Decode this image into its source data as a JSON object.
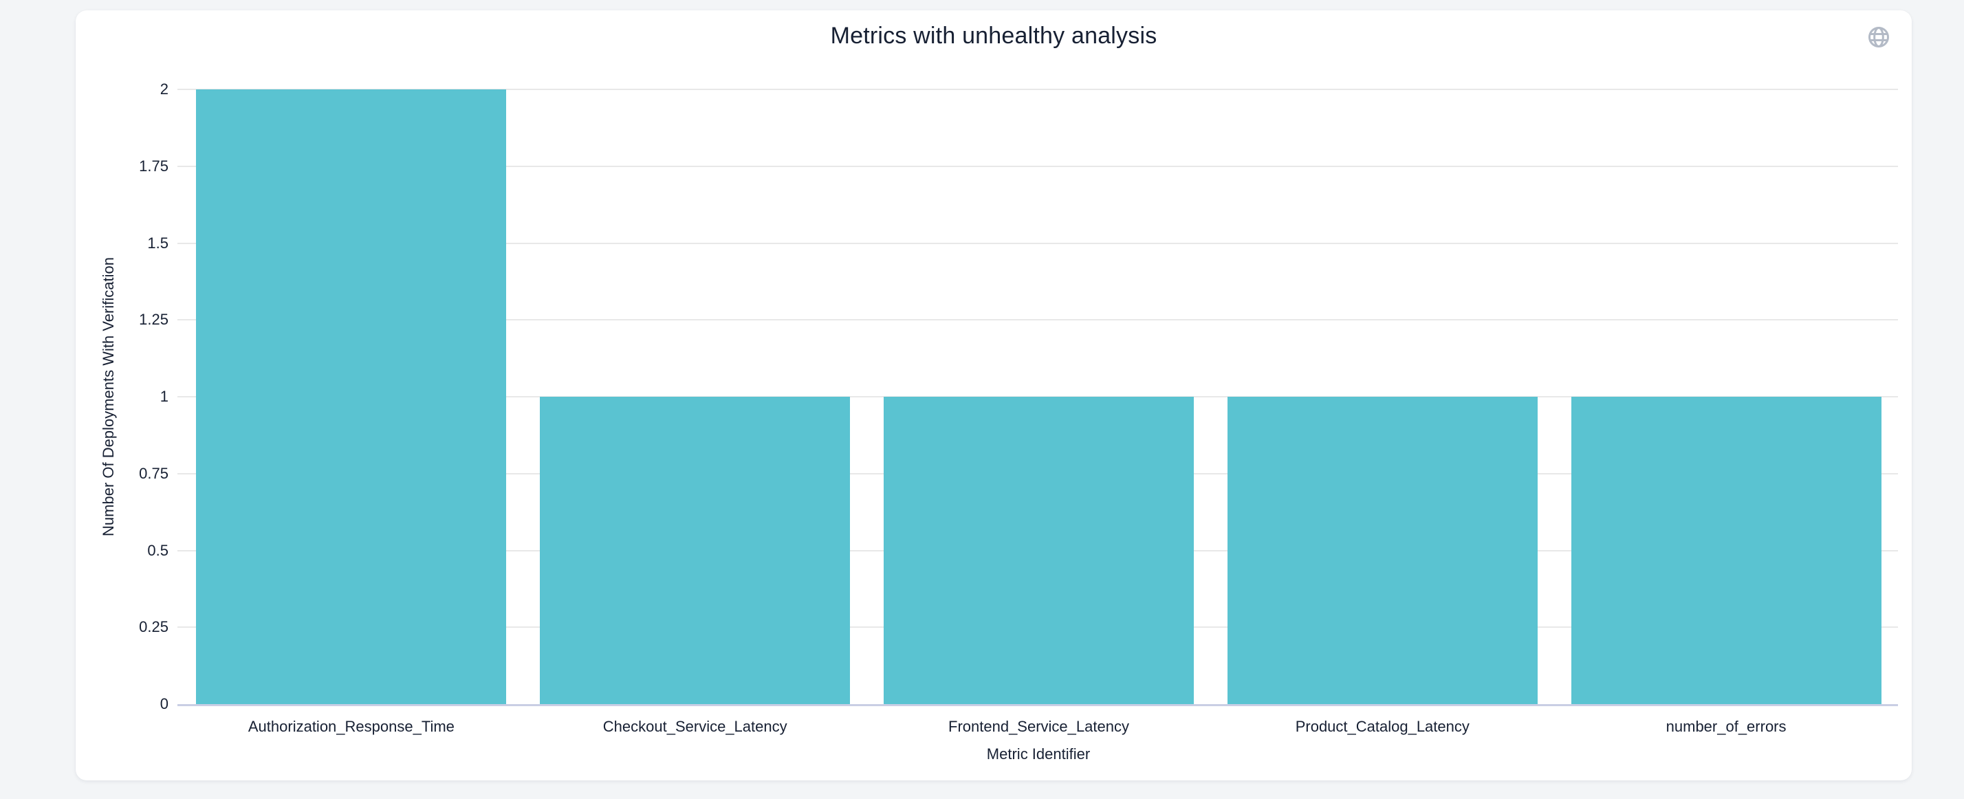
{
  "page": {
    "background_color": "#f3f5f7",
    "card_color": "#ffffff"
  },
  "header": {
    "icon": "globe-icon",
    "icon_color": "#b3bac6"
  },
  "chart_data": {
    "type": "bar",
    "title": "Metrics with unhealthy analysis",
    "categories": [
      "Authorization_Response_Time",
      "Checkout_Service_Latency",
      "Frontend_Service_Latency",
      "Product_Catalog_Latency",
      "number_of_errors"
    ],
    "values": [
      2,
      1,
      1,
      1,
      1
    ],
    "xlabel": "Metric Identifier",
    "ylabel": "Number Of Deployments With Verification",
    "ylim": [
      0,
      2
    ],
    "yticks": [
      0,
      0.25,
      0.5,
      0.75,
      1,
      1.25,
      1.5,
      1.75,
      2
    ],
    "grid": true,
    "legend_position": "none",
    "colors": {
      "bar": "#5ac3d1",
      "text": "#172033",
      "gridline": "#e8e8e8",
      "axis_baseline": "#c9cee4"
    }
  }
}
